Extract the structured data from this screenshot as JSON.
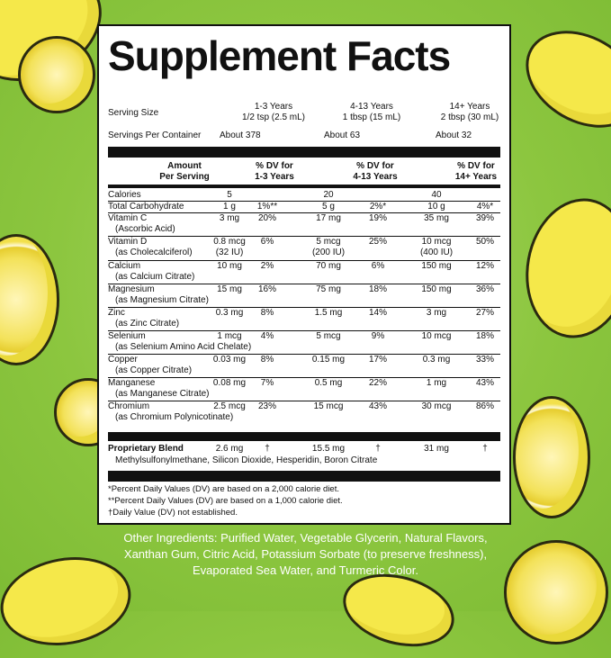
{
  "title": "Supplement Facts",
  "serving_size_label": "Serving Size",
  "servings_label": "Servings Per Container",
  "groups": [
    {
      "age": "1-3 Years",
      "size": "1/2 tsp (2.5 mL)",
      "servings": "About 378"
    },
    {
      "age": "4-13 Years",
      "size": "1 tbsp (15 mL)",
      "servings": "About 63"
    },
    {
      "age": "14+ Years",
      "size": "2 tbsp (30 mL)",
      "servings": "About 32"
    }
  ],
  "headers": {
    "amount": "Amount",
    "per_serving": "Per Serving",
    "dv1a": "% DV for",
    "dv1b": "1-3 Years",
    "dv2a": "% DV for",
    "dv2b": "4-13 Years",
    "dv3a": "% DV for",
    "dv3b": "14+ Years"
  },
  "rows": [
    {
      "name": "Calories",
      "sub": "",
      "a1": "5",
      "d1": "",
      "a2": "20",
      "d2": "",
      "a3": "40",
      "d3": ""
    },
    {
      "name": "Total Carbohydrate",
      "sub": "",
      "a1": "1 g",
      "d1": "1%**",
      "a2": "5 g",
      "d2": "2%*",
      "a3": "10 g",
      "d3": "4%*"
    },
    {
      "name": "Vitamin C",
      "sub": "(Ascorbic Acid)",
      "a1": "3 mg",
      "d1": "20%",
      "a2": "17 mg",
      "d2": "19%",
      "a3": "35 mg",
      "d3": "39%"
    },
    {
      "name": "Vitamin D",
      "sub": "(as Cholecalciferol)",
      "a1": "0.8 mcg",
      "a1b": "(32 IU)",
      "d1": "6%",
      "a2": "5 mcg",
      "a2b": "(200 IU)",
      "d2": "25%",
      "a3": "10 mcg",
      "a3b": "(400 IU)",
      "d3": "50%"
    },
    {
      "name": "Calcium",
      "sub": "(as Calcium Citrate)",
      "a1": "10 mg",
      "d1": "2%",
      "a2": "70 mg",
      "d2": "6%",
      "a3": "150 mg",
      "d3": "12%"
    },
    {
      "name": "Magnesium",
      "sub": "(as Magnesium Citrate)",
      "a1": "15 mg",
      "d1": "16%",
      "a2": "75 mg",
      "d2": "18%",
      "a3": "150 mg",
      "d3": "36%"
    },
    {
      "name": "Zinc",
      "sub": "(as Zinc Citrate)",
      "a1": "0.3 mg",
      "d1": "8%",
      "a2": "1.5 mg",
      "d2": "14%",
      "a3": "3 mg",
      "d3": "27%"
    },
    {
      "name": "Selenium",
      "sub": "(as Selenium Amino Acid Chelate)",
      "a1": "1 mcg",
      "d1": "4%",
      "a2": "5 mcg",
      "d2": "9%",
      "a3": "10 mcg",
      "d3": "18%"
    },
    {
      "name": "Copper",
      "sub": "(as Copper Citrate)",
      "a1": "0.03 mg",
      "d1": "8%",
      "a2": "0.15 mg",
      "d2": "17%",
      "a3": "0.3 mg",
      "d3": "33%"
    },
    {
      "name": "Manganese",
      "sub": "(as Manganese Citrate)",
      "a1": "0.08 mg",
      "d1": "7%",
      "a2": "0.5 mg",
      "d2": "22%",
      "a3": "1 mg",
      "d3": "43%"
    },
    {
      "name": "Chromium",
      "sub": "(as Chromium Polynicotinate)",
      "a1": "2.5 mcg",
      "d1": "23%",
      "a2": "15 mcg",
      "d2": "43%",
      "a3": "30 mcg",
      "d3": "86%"
    }
  ],
  "blend": {
    "name": "Proprietary Blend",
    "a1": "2.6 mg",
    "d1": "†",
    "a2": "15.5 mg",
    "d2": "†",
    "a3": "31 mg",
    "d3": "†",
    "ingredients": "Methylsulfonylmethane, Silicon Dioxide, Hesperidin, Boron Citrate"
  },
  "footnotes": [
    "*Percent Daily Values (DV) are based on a 2,000 calorie diet.",
    "**Percent Daily Values (DV) are based on a 1,000 calorie diet.",
    "†Daily Value (DV) not established."
  ],
  "other_ingredients": [
    "Other Ingredients: Purified Water, Vegetable Glycerin, Natural Flavors,",
    "Xanthan Gum, Citric Acid, Potassium Sorbate (to preserve freshness),",
    "Evaporated Sea Water, and Turmeric Color."
  ],
  "colors": {
    "background": "#8cc63f",
    "lemon": "#f5e84a",
    "panel": "#ffffff",
    "text": "#111111"
  }
}
